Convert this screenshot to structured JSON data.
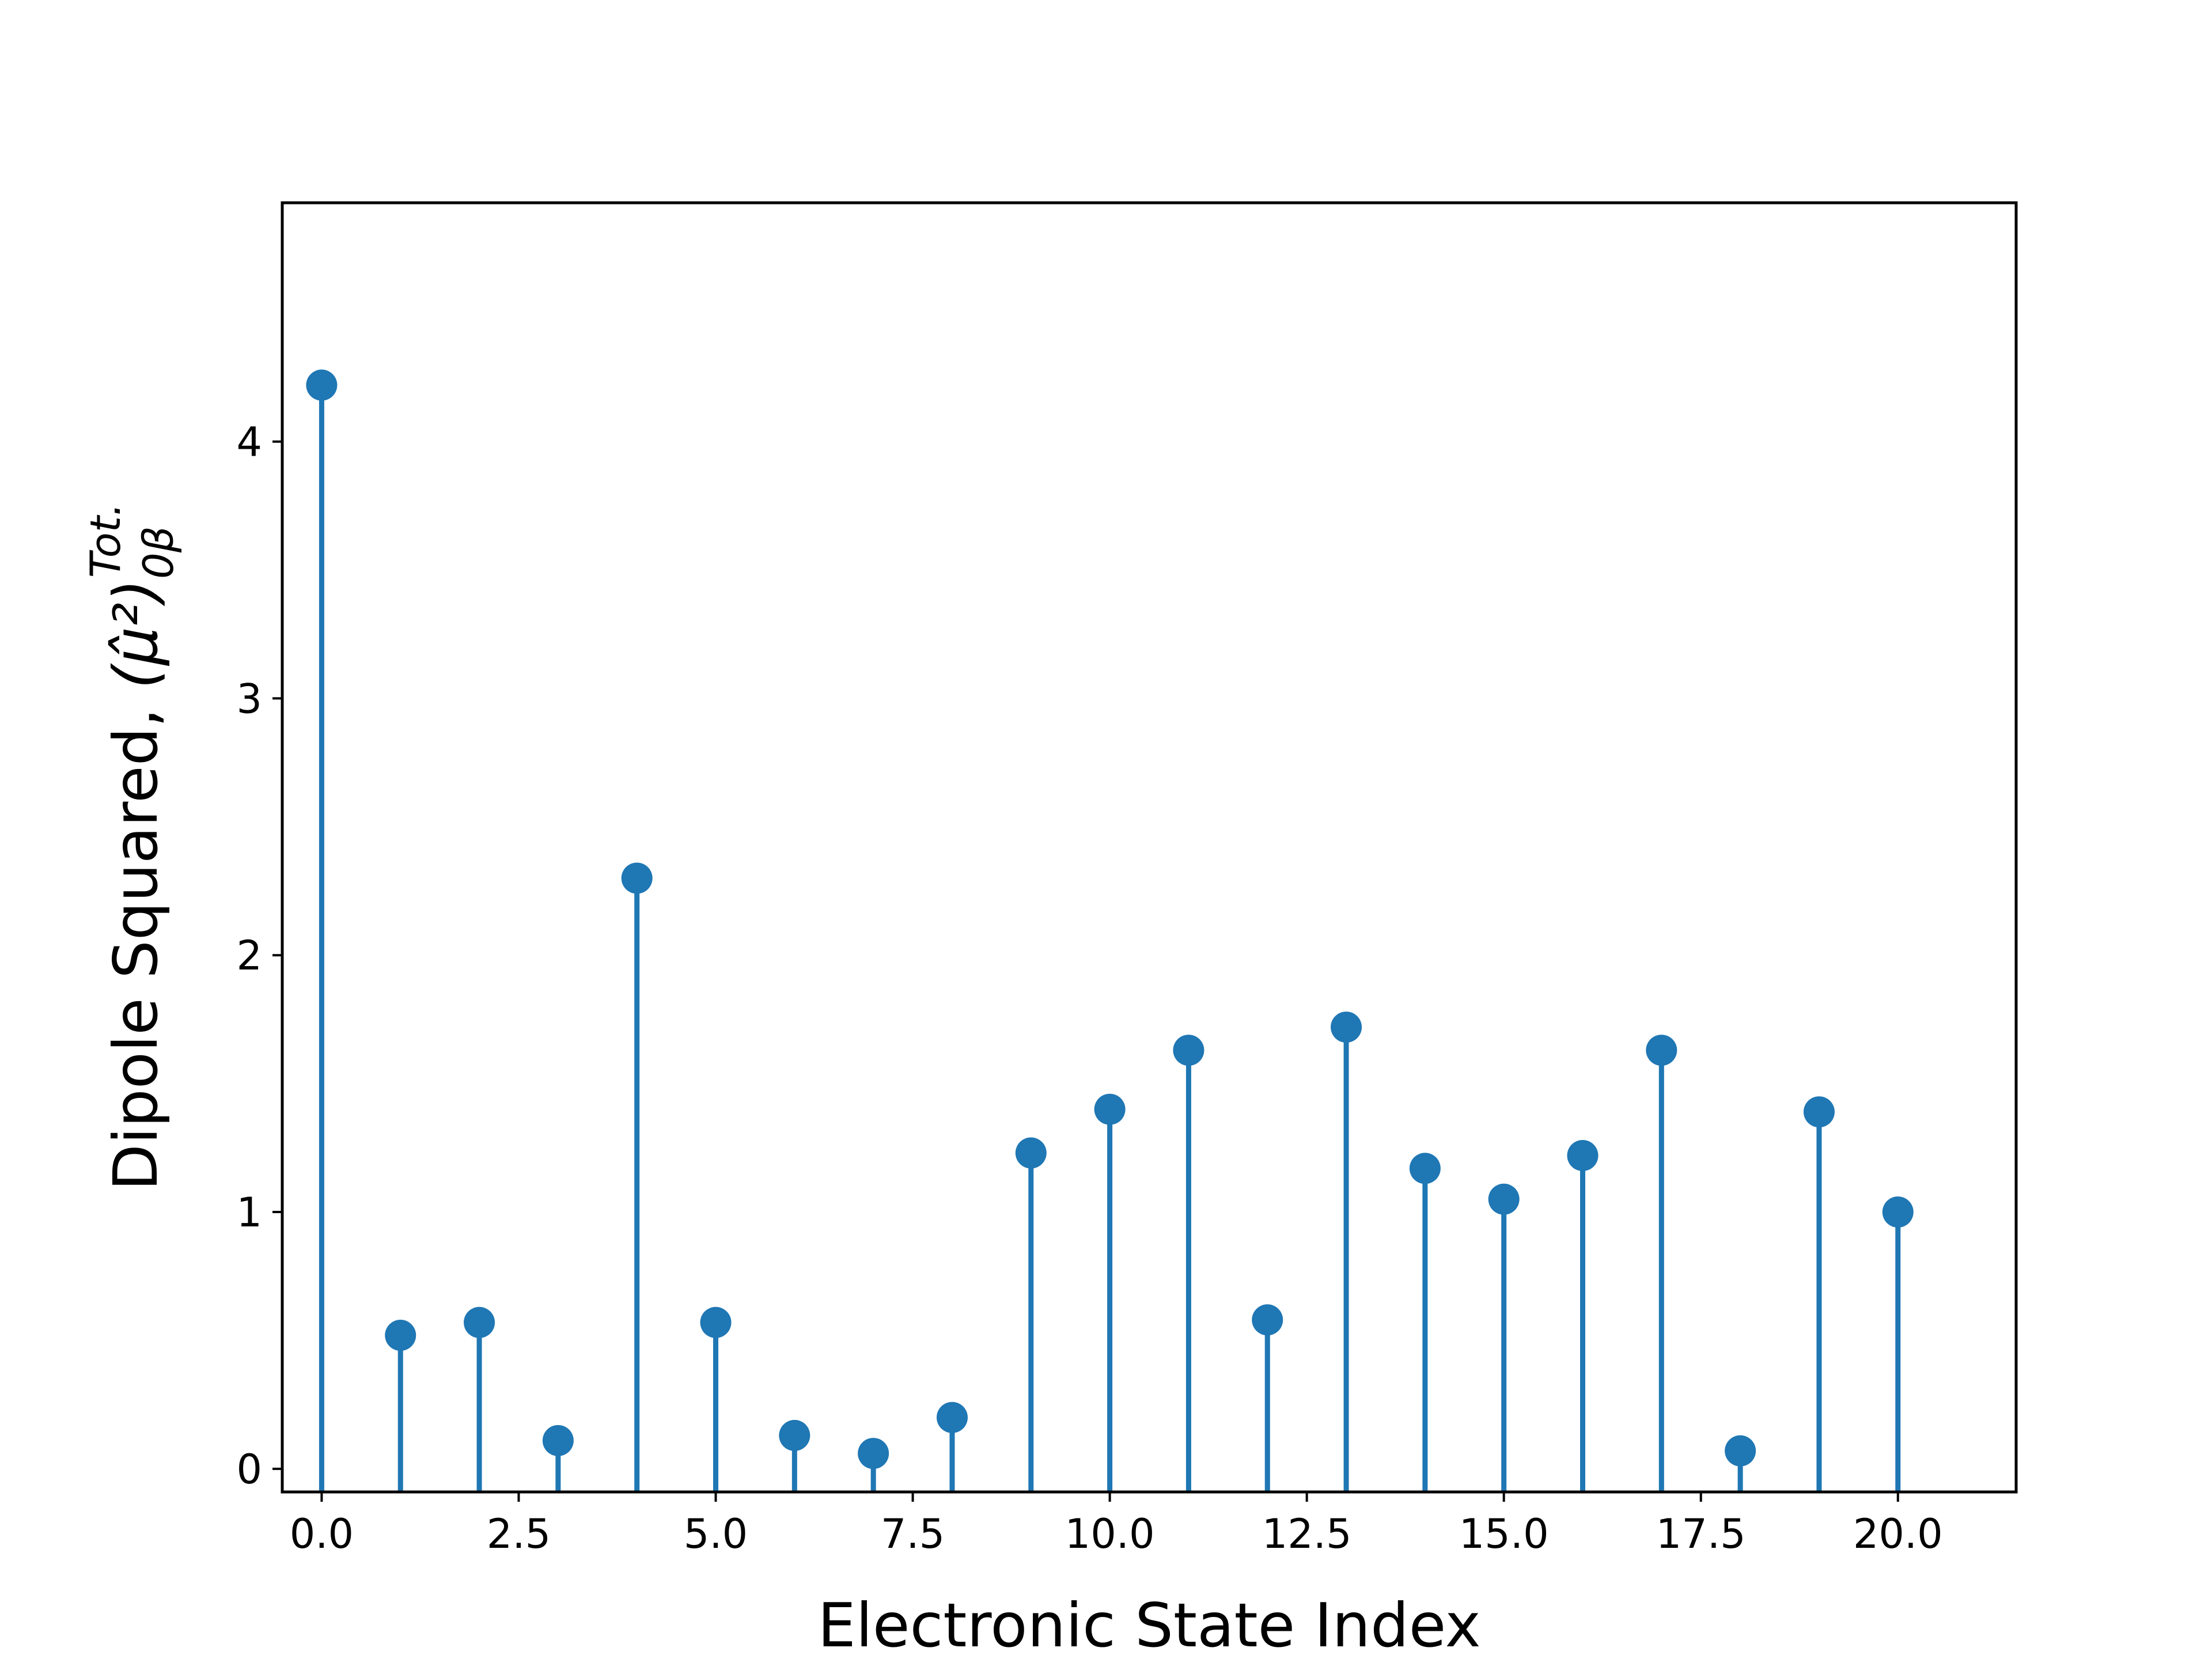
{
  "chart_data": {
    "type": "stem",
    "title": "",
    "xlabel": "Electronic State Index",
    "ylabel": {
      "text": "Dipole Squared, ",
      "symbol": "(μ̂²)",
      "subscript": "0β",
      "superscript": "Tot."
    },
    "x": [
      0,
      1,
      2,
      3,
      4,
      5,
      6,
      7,
      8,
      9,
      10,
      11,
      12,
      13,
      14,
      15,
      16,
      17,
      18,
      19,
      20
    ],
    "values": [
      4.22,
      0.52,
      0.57,
      0.11,
      2.3,
      0.57,
      0.13,
      0.06,
      0.2,
      1.23,
      1.4,
      1.63,
      0.58,
      1.72,
      1.17,
      1.05,
      1.22,
      1.63,
      0.07,
      1.39,
      1.0
    ],
    "xlim": [
      -0.5,
      21.5
    ],
    "ylim": [
      -0.09,
      4.93
    ],
    "xticks": [
      "0.0",
      "2.5",
      "5.0",
      "7.5",
      "10.0",
      "12.5",
      "15.0",
      "17.5",
      "20.0"
    ],
    "xtick_values": [
      0,
      2.5,
      5,
      7.5,
      10,
      12.5,
      15,
      17.5,
      20
    ],
    "yticks": [
      "0",
      "1",
      "2",
      "3",
      "4"
    ],
    "ytick_values": [
      0,
      1,
      2,
      3,
      4
    ],
    "grid": false,
    "legend": "none",
    "color": "#1f77b4"
  }
}
